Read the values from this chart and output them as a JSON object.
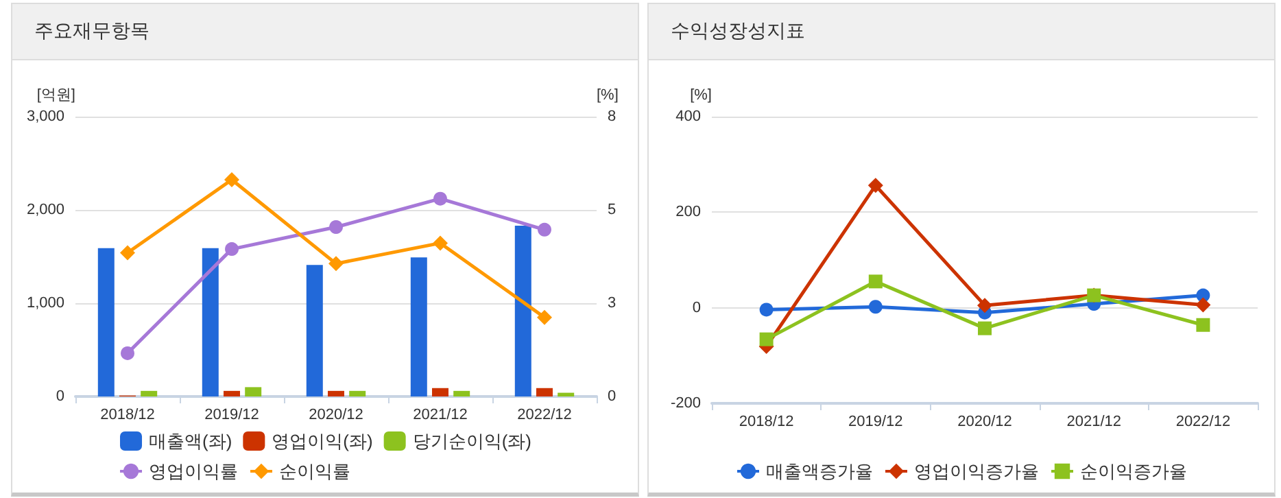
{
  "chart_data": [
    {
      "type": "bar",
      "title": "주요재무항목",
      "ylabel": "[억원]",
      "y2label": "[%]",
      "categories": [
        "2018/12",
        "2019/12",
        "2020/12",
        "2021/12",
        "2022/12"
      ],
      "series": [
        {
          "name": "매출액(좌)",
          "color": "#2269d9",
          "values": [
            1590,
            1590,
            1410,
            1490,
            1830
          ]
        },
        {
          "name": "영업이익(좌)",
          "color": "#cc3300",
          "values": [
            10,
            60,
            60,
            90,
            90
          ]
        },
        {
          "name": "당기순이익(좌)",
          "color": "#8dc21f",
          "values": [
            60,
            100,
            60,
            60,
            40
          ]
        },
        {
          "name": "영업이익률",
          "type": "line",
          "axis": "y2",
          "marker": "circle",
          "color": "#a678d8",
          "values": [
            1.16,
            3.95,
            4.54,
            5.3,
            4.47
          ]
        },
        {
          "name": "순이익률",
          "type": "line",
          "axis": "y2",
          "marker": "diamond",
          "color": "#ff9900",
          "values": [
            3.85,
            5.81,
            3.56,
            4.11,
            2.12
          ]
        }
      ],
      "ylim": [
        0,
        3000
      ],
      "yticks": [
        0,
        {
          "value": 1000,
          "label": "1,000"
        },
        {
          "value": 2000,
          "label": "2,000"
        },
        {
          "value": 3000,
          "label": "3,000"
        }
      ],
      "y2lim": [
        0,
        7.5
      ],
      "y2ticks": [
        0,
        {
          "value": 2.5,
          "label": "3"
        },
        {
          "value": 5,
          "label": "5"
        },
        {
          "value": 7.5,
          "label": "8"
        }
      ],
      "grid": "y",
      "legend": "bottom"
    },
    {
      "type": "line",
      "title": "수익성장성지표",
      "ylabel": "[%]",
      "categories": [
        "2018/12",
        "2019/12",
        "2020/12",
        "2021/12",
        "2022/12"
      ],
      "series": [
        {
          "name": "매출액증가율",
          "marker": "circle",
          "color": "#2269d9",
          "values": [
            -4,
            2,
            -10,
            8,
            26
          ]
        },
        {
          "name": "영업이익증가율",
          "marker": "diamond",
          "color": "#cc3300",
          "values": [
            -81,
            256,
            5,
            26,
            6
          ]
        },
        {
          "name": "순이익증가율",
          "marker": "square",
          "color": "#8dc21f",
          "values": [
            -66,
            55,
            -43,
            26,
            -36
          ]
        }
      ],
      "ylim": [
        -200,
        400
      ],
      "yticks": [
        -200,
        0,
        200,
        400
      ],
      "grid": "y",
      "legend": "bottom"
    }
  ]
}
